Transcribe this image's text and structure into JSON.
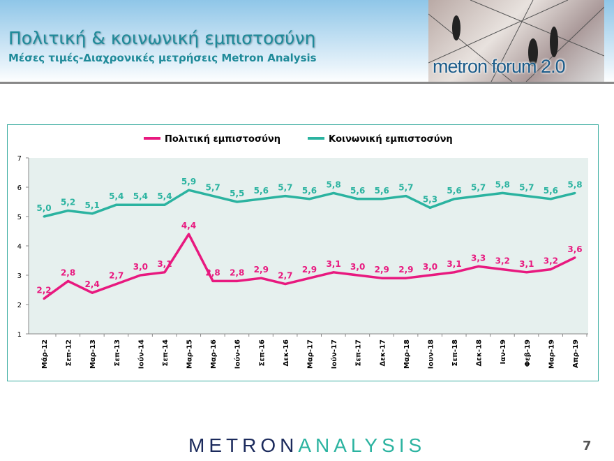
{
  "header": {
    "title": "Πολιτική & κοινωνική εμπιστοσύνη",
    "subtitle": "Μέσες τιμές-Διαχρονικές μετρήσεις Metron Analysis",
    "logo_text": "metron forum 2.0"
  },
  "footer": {
    "brand_part1": "METRON",
    "brand_part2": "ANALYSIS",
    "page_number": "7"
  },
  "chart_data": {
    "type": "line",
    "categories": [
      "Μάρ-12",
      "Σεπ-12",
      "Μαρ-13",
      "Σεπ-13",
      "Ιούν-14",
      "Σεπ-14",
      "Μαρ-15",
      "Μαρ-16",
      "Ιούν-16",
      "Σεπ-16",
      "Δεκ-16",
      "Μαρ-17",
      "Ιούν-17",
      "Σεπ-17",
      "Δεκ-17",
      "Μαρ-18",
      "Ιουν-18",
      "Σεπ-18",
      "Δεκ-18",
      "Ιαν-19",
      "Φεβ-19",
      "Μαρ-19",
      "Απρ-19"
    ],
    "series": [
      {
        "name": "Πολιτική εμπιστοσύνη",
        "color": "#e8197f",
        "values": [
          2.2,
          2.8,
          2.4,
          2.7,
          3.0,
          3.1,
          4.4,
          2.8,
          2.8,
          2.9,
          2.7,
          2.9,
          3.1,
          3.0,
          2.9,
          2.9,
          3.0,
          3.1,
          3.3,
          3.2,
          3.1,
          3.2,
          3.6
        ]
      },
      {
        "name": "Κοινωνική εμπιστοσύνη",
        "color": "#2bb3a0",
        "values": [
          5.0,
          5.2,
          5.1,
          5.4,
          5.4,
          5.4,
          5.9,
          5.7,
          5.5,
          5.6,
          5.7,
          5.6,
          5.8,
          5.6,
          5.6,
          5.7,
          5.3,
          5.6,
          5.7,
          5.8,
          5.7,
          5.6,
          5.8
        ]
      }
    ],
    "ylim": [
      1,
      7
    ],
    "yticks": [
      1,
      2,
      3,
      4,
      5,
      6,
      7
    ],
    "legend": "top",
    "grid": false,
    "plot_background": "#e6f0ee"
  }
}
